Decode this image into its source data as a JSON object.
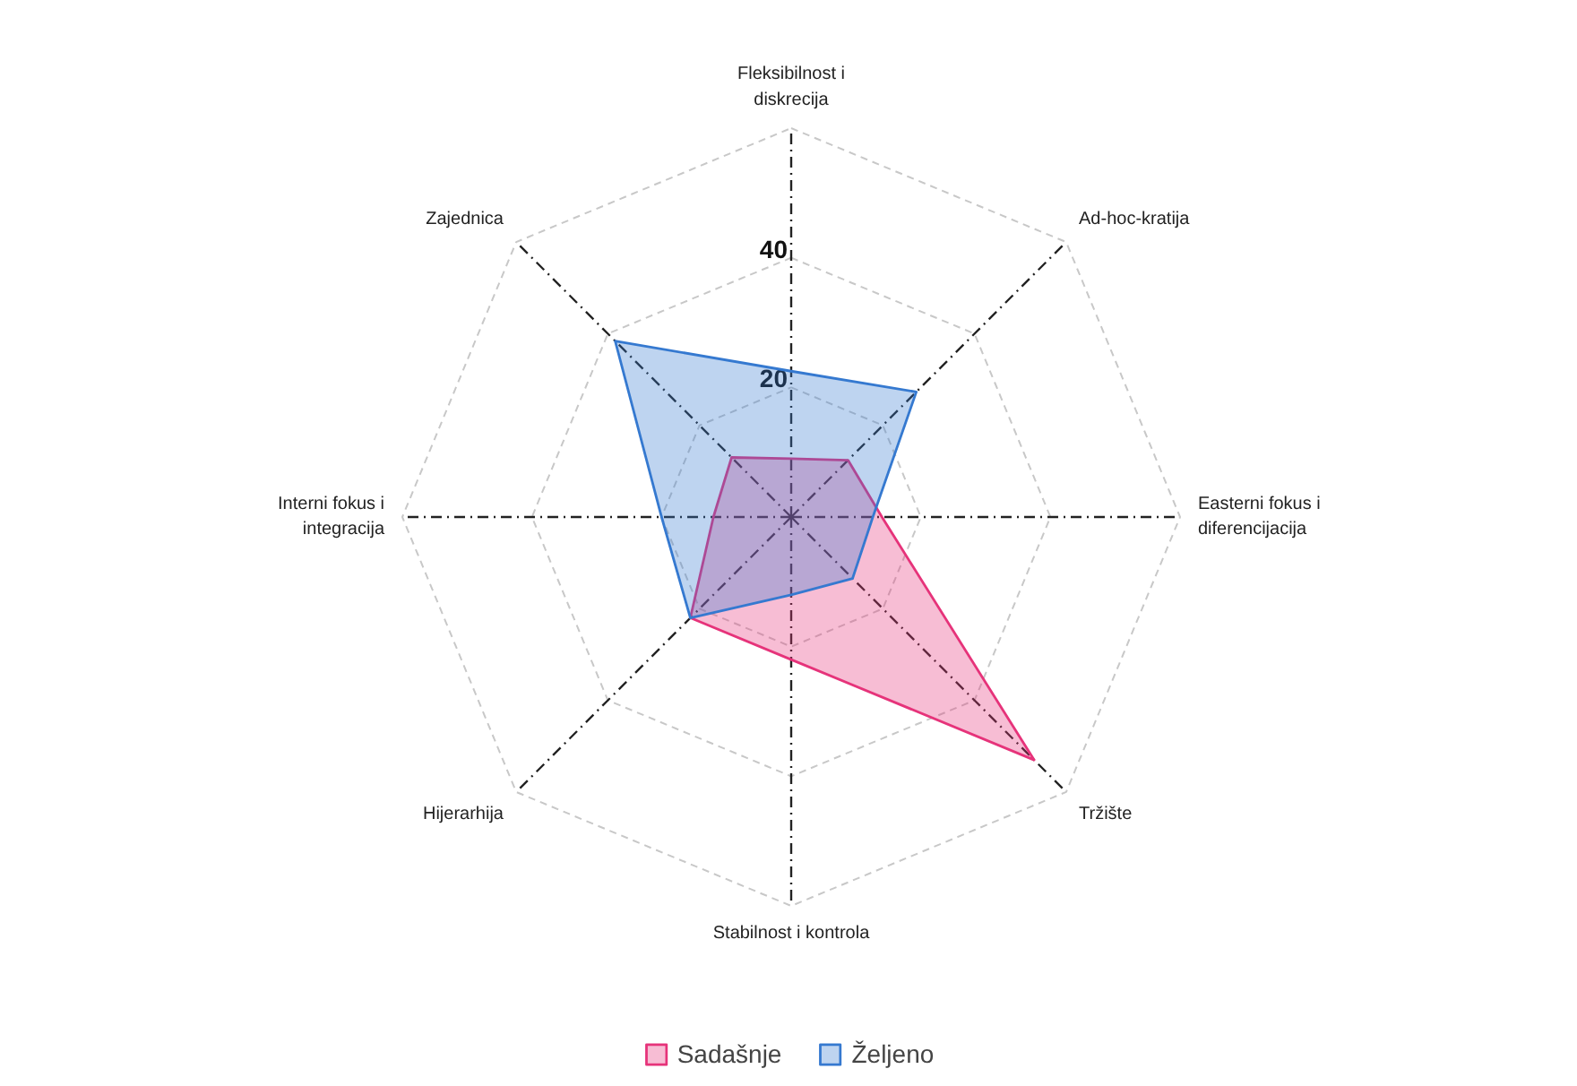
{
  "chart_data": {
    "type": "radar",
    "categories": [
      "Fleksibilnost i\ndiskrecija",
      "Ad-hoc-kratija",
      "Easterni fokus i\ndiferencijacija",
      "Tržište",
      "Stabilnost i kontrola",
      "Hijerarhija",
      "Interni fokus i\nintegracija",
      "Zajednica"
    ],
    "series": [
      {
        "name": "Sadašnje",
        "color": "#e6337a",
        "values": [
          9,
          12.4,
          14,
          53,
          22,
          22,
          12,
          13
        ]
      },
      {
        "name": "Željeno",
        "color": "#3579d0",
        "values": [
          22.5,
          27.3,
          12.6,
          13.4,
          12,
          22,
          20,
          38.4
        ]
      }
    ],
    "ylim": [
      0,
      60
    ],
    "yticks": [
      20,
      40
    ],
    "grid": true,
    "legend": "bottom"
  }
}
